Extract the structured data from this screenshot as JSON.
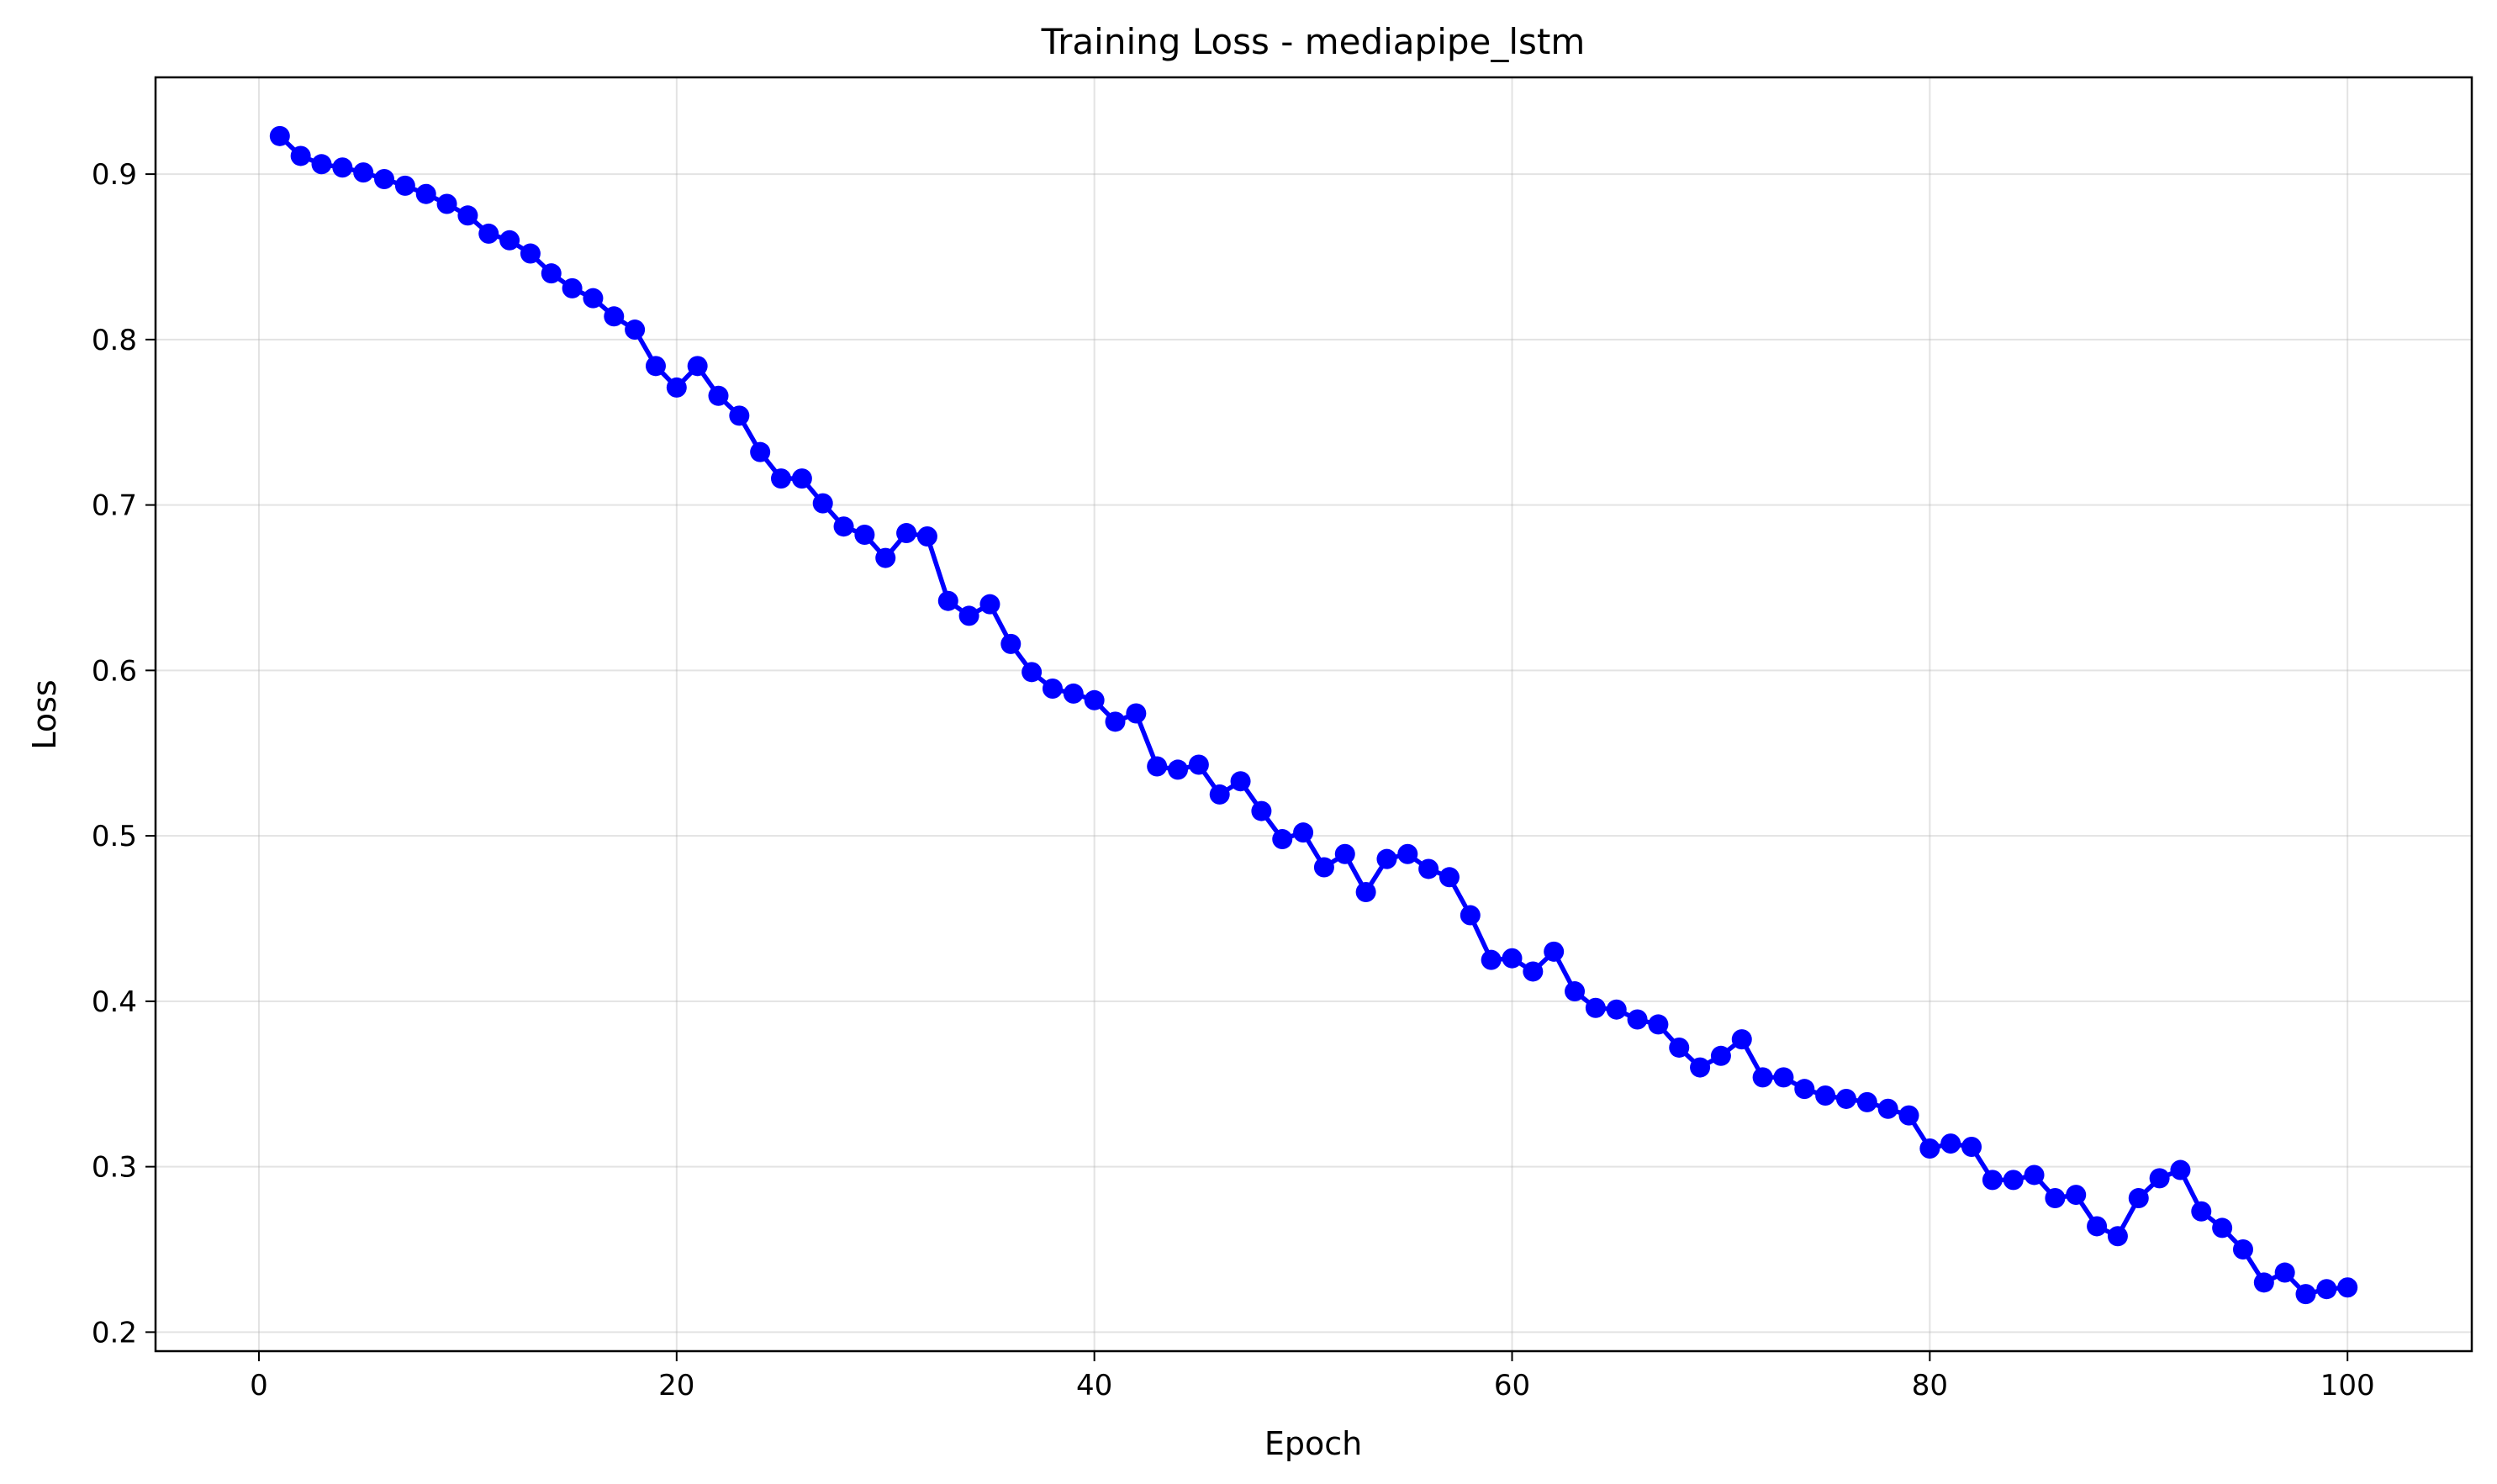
{
  "chart_data": {
    "type": "line",
    "title": "Training Loss - mediapipe_lstm",
    "xlabel": "Epoch",
    "ylabel": "Loss",
    "xlim": [
      -4.95,
      105.95
    ],
    "ylim": [
      0.1885,
      0.9585
    ],
    "xticks": [
      0,
      20,
      40,
      60,
      80,
      100
    ],
    "yticks": [
      0.2,
      0.3,
      0.4,
      0.5,
      0.6,
      0.7,
      0.8,
      0.9
    ],
    "xtick_labels": [
      "0",
      "20",
      "40",
      "60",
      "80",
      "100"
    ],
    "ytick_labels": [
      "0.2",
      "0.3",
      "0.4",
      "0.5",
      "0.6",
      "0.7",
      "0.8",
      "0.9"
    ],
    "grid": true,
    "color": "#0000ff",
    "marker": "circle",
    "series": [
      {
        "x": [
          1,
          2,
          3,
          4,
          5,
          6,
          7,
          8,
          9,
          10,
          11,
          12,
          13,
          14,
          15,
          16,
          17,
          18,
          19,
          20,
          21,
          22,
          23,
          24,
          25,
          26,
          27,
          28,
          29,
          30,
          31,
          32,
          33,
          34,
          35,
          36,
          37,
          38,
          39,
          40,
          41,
          42,
          43,
          44,
          45,
          46,
          47,
          48,
          49,
          50,
          51,
          52,
          53,
          54,
          55,
          56,
          57,
          58,
          59,
          60,
          61,
          62,
          63,
          64,
          65,
          66,
          67,
          68,
          69,
          70,
          71,
          72,
          73,
          74,
          75,
          76,
          77,
          78,
          79,
          80,
          81,
          82,
          83,
          84,
          85,
          86,
          87,
          88,
          89,
          90,
          91,
          92,
          93,
          94,
          95,
          96,
          97,
          98,
          99,
          100
        ],
        "y": [
          0.923,
          0.911,
          0.906,
          0.904,
          0.901,
          0.897,
          0.893,
          0.888,
          0.882,
          0.875,
          0.864,
          0.86,
          0.852,
          0.84,
          0.831,
          0.825,
          0.814,
          0.806,
          0.784,
          0.771,
          0.784,
          0.766,
          0.754,
          0.732,
          0.716,
          0.716,
          0.701,
          0.687,
          0.682,
          0.668,
          0.683,
          0.681,
          0.642,
          0.633,
          0.64,
          0.616,
          0.599,
          0.589,
          0.586,
          0.582,
          0.569,
          0.574,
          0.542,
          0.54,
          0.543,
          0.525,
          0.533,
          0.515,
          0.498,
          0.502,
          0.481,
          0.489,
          0.466,
          0.486,
          0.489,
          0.48,
          0.475,
          0.452,
          0.425,
          0.426,
          0.418,
          0.43,
          0.406,
          0.396,
          0.395,
          0.389,
          0.386,
          0.372,
          0.36,
          0.367,
          0.377,
          0.354,
          0.354,
          0.347,
          0.343,
          0.341,
          0.339,
          0.335,
          0.331,
          0.311,
          0.314,
          0.312,
          0.292,
          0.292,
          0.295,
          0.281,
          0.283,
          0.264,
          0.258,
          0.281,
          0.293,
          0.298,
          0.273,
          0.263,
          0.25,
          0.23,
          0.236,
          0.223,
          0.226,
          0.227
        ]
      }
    ]
  }
}
